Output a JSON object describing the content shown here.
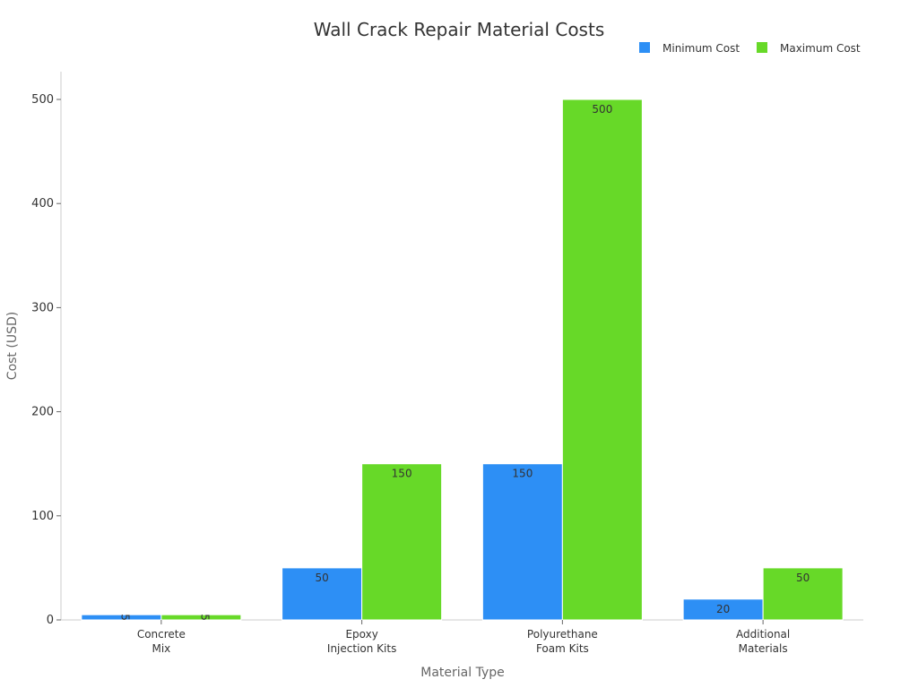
{
  "chart_data": {
    "type": "bar",
    "title": "Wall Crack Repair Material Costs",
    "xlabel": "Material Type",
    "ylabel": "Cost (USD)",
    "categories": [
      [
        "Concrete",
        "Mix"
      ],
      [
        "Epoxy",
        "Injection Kits"
      ],
      [
        "Polyurethane",
        "Foam Kits"
      ],
      [
        "Additional",
        "Materials"
      ]
    ],
    "series": [
      {
        "name": "Minimum Cost",
        "color": "#2d8ff5",
        "values": [
          5,
          50,
          150,
          20
        ]
      },
      {
        "name": "Maximum Cost",
        "color": "#67d928",
        "values": [
          5,
          150,
          500,
          50
        ]
      }
    ],
    "ylim": [
      0,
      525
    ],
    "yticks": [
      0,
      100,
      200,
      300,
      400,
      500
    ],
    "grid": false,
    "legend_position": "top-right"
  }
}
